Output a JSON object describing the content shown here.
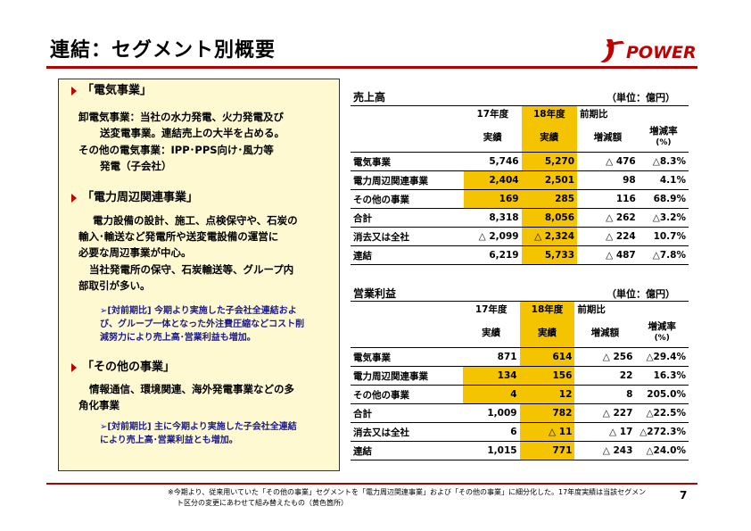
{
  "title": "連結：セグメント別概要",
  "logo": {
    "text": "POWER"
  },
  "left": {
    "sec1_head": "「電気事業」",
    "sec1_l1": "卸電気事業：当社の水力発電、火力発電及び",
    "sec1_l2": "送変電事業。連結売上の大半を占める。",
    "sec1_l3": "その他の電気事業：IPP･PPS向け･風力等",
    "sec1_l4": "発電（子会社）",
    "sec2_head": "「電力周辺関連事業」",
    "sec2_l1": "電力設備の設計、施工、点検保守や、石炭の",
    "sec2_l2": "輸入･輸送など発電所や送変電設備の運営に",
    "sec2_l3": "必要な周辺事業が中心。",
    "sec2_l4": "当社発電所の保守、石炭輸送等、グループ内",
    "sec2_l5": "部取引が多い。",
    "sec2_n1": "➢[対前期比] 今期より実施した子会社全連結およ",
    "sec2_n2": "び、グループ一体となった外注費圧縮などコスト削",
    "sec2_n3": "減努力により売上高･営業利益も増加。",
    "sec3_head": "「その他の事業」",
    "sec3_l1": "情報通信、環境関連、海外発電事業などの多",
    "sec3_l2": "角化事業",
    "sec3_n1": "➢[対前期比] 主に今期より実施した子会社全連結",
    "sec3_n2": "により売上高･営業利益とも増加。"
  },
  "sales": {
    "title": "売上高",
    "unit": "（単位：億円）",
    "h_fy17": "17年度",
    "h_fy18": "18年度",
    "h_yoy": "前期比",
    "h_actual17": "実績",
    "h_actual18": "実績",
    "h_diff": "増減額",
    "h_rate1": "増減率",
    "h_rate2": "(%)",
    "rows": [
      {
        "label": "電気事業",
        "fy17": "5,746",
        "fy18": "5,270",
        "diff": "△ 476",
        "rate": "△8.3%"
      },
      {
        "label": "電力周辺関連事業",
        "fy17": "2,404",
        "fy18": "2,501",
        "diff": "98",
        "rate": "4.1%"
      },
      {
        "label": "その他の事業",
        "fy17": "169",
        "fy18": "285",
        "diff": "116",
        "rate": "68.9%"
      },
      {
        "label": "合計",
        "fy17": "8,318",
        "fy18": "8,056",
        "diff": "△ 262",
        "rate": "△3.2%"
      },
      {
        "label": "消去又は全社",
        "fy17": "△ 2,099",
        "fy18": "△ 2,324",
        "diff": "△ 224",
        "rate": "10.7%"
      },
      {
        "label": "連結",
        "fy17": "6,219",
        "fy18": "5,733",
        "diff": "△ 487",
        "rate": "△7.8%"
      }
    ]
  },
  "op": {
    "title": "営業利益",
    "unit": "（単位：億円）",
    "h_fy17": "17年度",
    "h_fy18": "18年度",
    "h_yoy": "前期比",
    "h_actual17": "実績",
    "h_actual18": "実績",
    "h_diff": "増減額",
    "h_rate1": "増減率",
    "h_rate2": "(%)",
    "rows": [
      {
        "label": "電気事業",
        "fy17": "871",
        "fy18": "614",
        "diff": "△ 256",
        "rate": "△29.4%"
      },
      {
        "label": "電力周辺関連事業",
        "fy17": "134",
        "fy18": "156",
        "diff": "22",
        "rate": "16.3%"
      },
      {
        "label": "その他の事業",
        "fy17": "4",
        "fy18": "12",
        "diff": "8",
        "rate": "205.0%"
      },
      {
        "label": "合計",
        "fy17": "1,009",
        "fy18": "782",
        "diff": "△ 227",
        "rate": "△22.5%"
      },
      {
        "label": "消去又は全社",
        "fy17": "6",
        "fy18": "△ 11",
        "diff": "△ 17",
        "rate": "△272.3%"
      },
      {
        "label": "連結",
        "fy17": "1,015",
        "fy18": "771",
        "diff": "△ 243",
        "rate": "△24.0%"
      }
    ]
  },
  "footnote_l1": "※今期より、従来用いていた「その他の事業」セグメントを「電力周辺関連事業」および「その他の事業」に細分化した。17年度実績は当該セグメン",
  "footnote_l2": "ト区分の変更にあわせて組み替えたもの（黄色箇所）",
  "page_number": "7",
  "colors": {
    "accent": "#b00000",
    "highlight": "#f5c400",
    "panel": "#fff9d2",
    "note": "#1a1a8c"
  }
}
